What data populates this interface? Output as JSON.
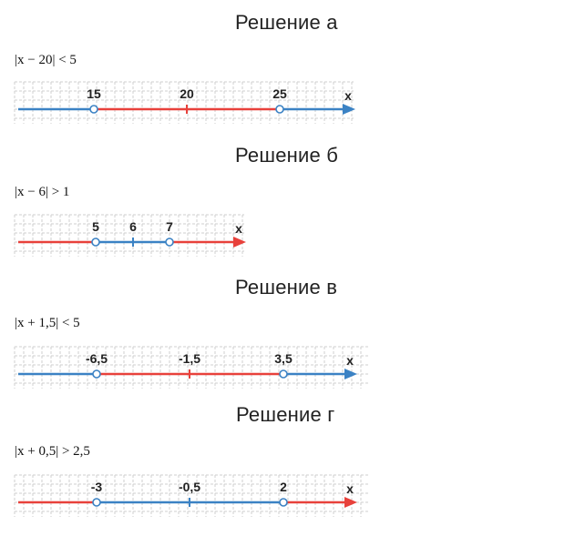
{
  "sections": [
    {
      "heading": "Решение а",
      "inequality": "|x − 20| < 5",
      "axis_letter": "x",
      "labels": [
        "15",
        "20",
        "25"
      ],
      "segments": [
        {
          "range": "left",
          "color": "#3b82c4"
        },
        {
          "range": "middle",
          "color": "#e8413b"
        },
        {
          "range": "right",
          "color": "#3b82c4"
        }
      ],
      "arrow_color": "#3b82c4"
    },
    {
      "heading": "Решение б",
      "inequality": "|x − 6| > 1",
      "axis_letter": "x",
      "labels": [
        "5",
        "6",
        "7"
      ],
      "segments": [
        {
          "range": "left",
          "color": "#e8413b"
        },
        {
          "range": "middle",
          "color": "#3b82c4"
        },
        {
          "range": "right",
          "color": "#e8413b"
        }
      ],
      "arrow_color": "#e8413b"
    },
    {
      "heading": "Решение в",
      "inequality": "|x + 1,5| < 5",
      "axis_letter": "x",
      "labels": [
        "-6,5",
        "-1,5",
        "3,5"
      ],
      "segments": [
        {
          "range": "left",
          "color": "#3b82c4"
        },
        {
          "range": "middle",
          "color": "#e8413b"
        },
        {
          "range": "right",
          "color": "#3b82c4"
        }
      ],
      "arrow_color": "#3b82c4"
    },
    {
      "heading": "Решение г",
      "inequality": "|x + 0,5| > 2,5",
      "axis_letter": "x",
      "labels": [
        "-3",
        "-0,5",
        "2"
      ],
      "segments": [
        {
          "range": "left",
          "color": "#e8413b"
        },
        {
          "range": "middle",
          "color": "#3b82c4"
        },
        {
          "range": "right",
          "color": "#e8413b"
        }
      ],
      "arrow_color": "#e8413b"
    }
  ]
}
